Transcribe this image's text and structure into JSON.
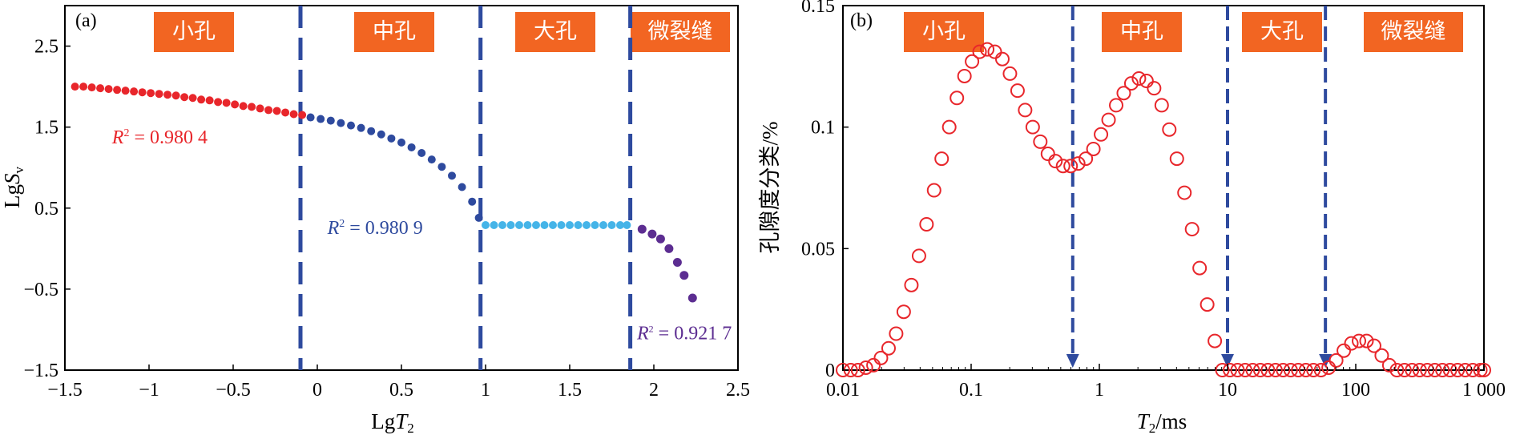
{
  "colors": {
    "zone_box": "#f26522",
    "red": "#e8262b",
    "blue_dark": "#2e4a9e",
    "cyan": "#45b4e8",
    "purple": "#5c2d91",
    "divider": "#2e4a9e",
    "open_circle": "#e8262b"
  },
  "chart_data": [
    {
      "type": "scatter",
      "panel_label": "(a)",
      "xlabel_main": "Lg",
      "xlabel_var": "T",
      "xlabel_sub": "2",
      "ylabel_main": "Lg",
      "ylabel_var": "S",
      "ylabel_sub": "v",
      "xlim": [
        -1.5,
        2.5
      ],
      "ylim": [
        -1.5,
        3.0
      ],
      "xticks": [
        -1.5,
        -1,
        -0.5,
        0,
        0.5,
        1,
        1.5,
        2,
        2.5
      ],
      "xtick_labels": [
        "−1.5",
        "−1",
        "−0.5",
        "0",
        "0.5",
        "1",
        "1.5",
        "2",
        "2.5"
      ],
      "yticks": [
        -1.5,
        -0.5,
        0.5,
        1.5,
        2.5
      ],
      "ytick_labels": [
        "−1.5",
        "−0.5",
        "0.5",
        "1.5",
        "2.5"
      ],
      "zones": [
        "小孔",
        "中孔",
        "大孔",
        "微裂缝"
      ],
      "dividers": [
        -0.1,
        0.97,
        1.86
      ],
      "annotations": [
        {
          "label": "R",
          "sup": "2",
          "text": " = 0.980 4",
          "x": -1.22,
          "y": 1.3,
          "color": "red"
        },
        {
          "label": "R",
          "sup": "2",
          "text": " = 0.980 9",
          "x": 0.06,
          "y": 0.18,
          "color": "blue_dark"
        },
        {
          "label": "R",
          "sup": "2",
          "text": " = 0.921 7",
          "x": 1.9,
          "y": -1.12,
          "color": "purple"
        }
      ],
      "series": [
        {
          "color": "red",
          "x": [
            -1.44,
            -1.39,
            -1.34,
            -1.29,
            -1.24,
            -1.19,
            -1.14,
            -1.09,
            -1.04,
            -0.99,
            -0.94,
            -0.89,
            -0.84,
            -0.79,
            -0.74,
            -0.69,
            -0.64,
            -0.59,
            -0.54,
            -0.49,
            -0.44,
            -0.39,
            -0.34,
            -0.29,
            -0.24,
            -0.19,
            -0.14,
            -0.09
          ],
          "y": [
            2.0,
            2.0,
            1.99,
            1.98,
            1.97,
            1.96,
            1.95,
            1.94,
            1.93,
            1.92,
            1.91,
            1.9,
            1.89,
            1.87,
            1.86,
            1.84,
            1.83,
            1.81,
            1.8,
            1.78,
            1.76,
            1.75,
            1.73,
            1.71,
            1.7,
            1.68,
            1.66,
            1.65
          ]
        },
        {
          "color": "blue_dark",
          "x": [
            -0.04,
            0.02,
            0.08,
            0.14,
            0.2,
            0.26,
            0.32,
            0.38,
            0.44,
            0.5,
            0.56,
            0.62,
            0.68,
            0.74,
            0.8,
            0.86,
            0.92,
            0.96
          ],
          "y": [
            1.62,
            1.6,
            1.58,
            1.55,
            1.52,
            1.49,
            1.45,
            1.41,
            1.36,
            1.31,
            1.25,
            1.18,
            1.1,
            1.01,
            0.9,
            0.76,
            0.58,
            0.38
          ]
        },
        {
          "color": "cyan",
          "x": [
            1.0,
            1.05,
            1.1,
            1.15,
            1.2,
            1.25,
            1.3,
            1.35,
            1.4,
            1.45,
            1.5,
            1.55,
            1.6,
            1.65,
            1.7,
            1.75,
            1.8,
            1.84
          ],
          "y": [
            0.29,
            0.29,
            0.29,
            0.29,
            0.29,
            0.29,
            0.29,
            0.29,
            0.29,
            0.29,
            0.29,
            0.29,
            0.29,
            0.29,
            0.29,
            0.29,
            0.29,
            0.29
          ]
        },
        {
          "color": "purple",
          "x": [
            1.93,
            1.99,
            2.04,
            2.09,
            2.14,
            2.18,
            2.23
          ],
          "y": [
            0.24,
            0.18,
            0.12,
            0.0,
            -0.17,
            -0.33,
            -0.61
          ]
        }
      ]
    },
    {
      "type": "scatter",
      "panel_label": "(b)",
      "xlabel_var": "T",
      "xlabel_sub": "2",
      "xlabel_unit": "/ms",
      "ylabel": "孔隙度分类/%",
      "xscale": "log",
      "xlim": [
        0.01,
        1000
      ],
      "ylim": [
        0,
        0.15
      ],
      "xticks": [
        0.01,
        0.1,
        1,
        10,
        100,
        1000
      ],
      "xtick_labels": [
        "0.01",
        "0.1",
        "1",
        "10",
        "100",
        "1 000"
      ],
      "yticks": [
        0,
        0.05,
        0.1,
        0.15
      ],
      "ytick_labels": [
        "0",
        "0.05",
        "0.1",
        "0.15"
      ],
      "zones": [
        "小孔",
        "中孔",
        "大孔",
        "微裂缝"
      ],
      "dividers": [
        0.62,
        10,
        58
      ],
      "series": [
        {
          "color": "open_circle",
          "x": [
            0.01,
            0.0115,
            0.0131,
            0.0151,
            0.0173,
            0.0198,
            0.0227,
            0.026,
            0.0298,
            0.0342,
            0.0392,
            0.0449,
            0.0514,
            0.0589,
            0.0675,
            0.0774,
            0.0887,
            0.1016,
            0.1164,
            0.1334,
            0.1529,
            0.1752,
            0.2008,
            0.2301,
            0.2637,
            0.3022,
            0.3463,
            0.3969,
            0.4548,
            0.5212,
            0.5973,
            0.6845,
            0.7844,
            0.899,
            1.0302,
            1.1806,
            1.353,
            1.5505,
            1.7769,
            2.0363,
            2.3336,
            2.6743,
            3.0647,
            3.5121,
            4.0249,
            4.6124,
            5.2858,
            6.0575,
            6.9418,
            7.9552,
            9.1166,
            10.4476,
            11.9729,
            13.7209,
            15.724,
            18.0197,
            20.6505,
            23.6653,
            27.1203,
            31.0797,
            35.6171,
            40.8169,
            46.776,
            53.605,
            61.431,
            70.4,
            80.677,
            92.456,
            105.956,
            121.424,
            139.15,
            159.469,
            182.745,
            209.434,
            240.004,
            275.035,
            315.185,
            361.197,
            413.941,
            474.392,
            543.638,
            623.015,
            713.976,
            818.219,
            937.672,
            1000
          ],
          "y": [
            0,
            0,
            0,
            0.001,
            0.002,
            0.005,
            0.009,
            0.015,
            0.024,
            0.035,
            0.047,
            0.06,
            0.074,
            0.087,
            0.1,
            0.112,
            0.121,
            0.127,
            0.131,
            0.132,
            0.131,
            0.128,
            0.122,
            0.115,
            0.107,
            0.1,
            0.094,
            0.089,
            0.086,
            0.084,
            0.084,
            0.085,
            0.087,
            0.091,
            0.097,
            0.103,
            0.109,
            0.114,
            0.118,
            0.12,
            0.119,
            0.116,
            0.109,
            0.099,
            0.087,
            0.073,
            0.058,
            0.042,
            0.027,
            0.012,
            0,
            0,
            0,
            0,
            0,
            0,
            0,
            0,
            0,
            0,
            0,
            0,
            0,
            0,
            0.001,
            0.004,
            0.008,
            0.011,
            0.012,
            0.012,
            0.01,
            0.006,
            0.002,
            0,
            0,
            0,
            0,
            0,
            0,
            0,
            0,
            0,
            0,
            0,
            0,
            0
          ]
        }
      ]
    }
  ]
}
